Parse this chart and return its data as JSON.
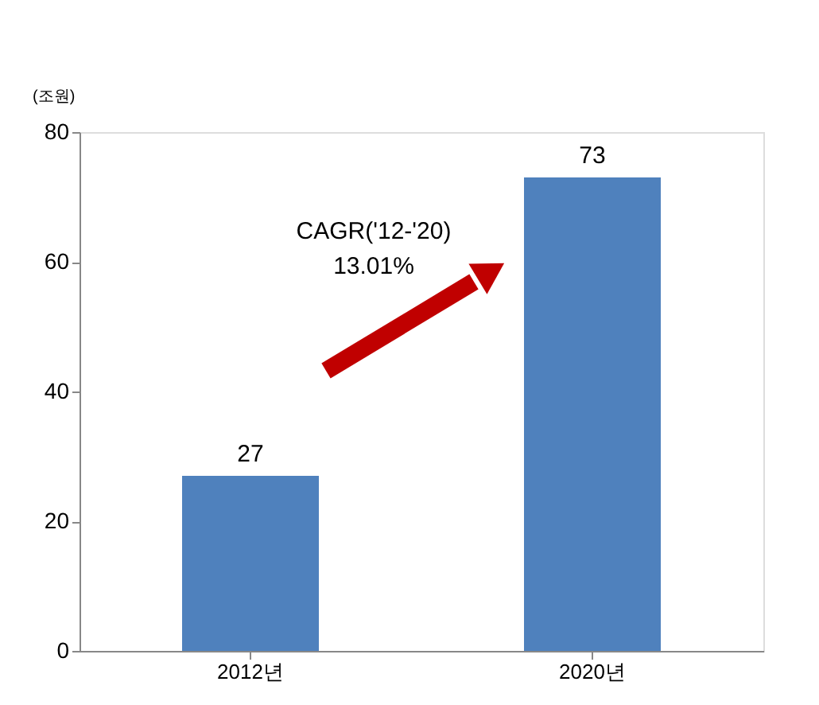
{
  "chart_data": {
    "type": "bar",
    "ylabel": "(조원)",
    "categories": [
      "2012년",
      "2020년"
    ],
    "values": [
      27,
      73
    ],
    "color": "#4f81bd",
    "ylim": [
      0,
      80
    ],
    "yticks": [
      0,
      20,
      40,
      60,
      80
    ],
    "grid": false,
    "data_labels": true,
    "annotations": [
      "CAGR('12-'20)\n13.01%"
    ]
  }
}
